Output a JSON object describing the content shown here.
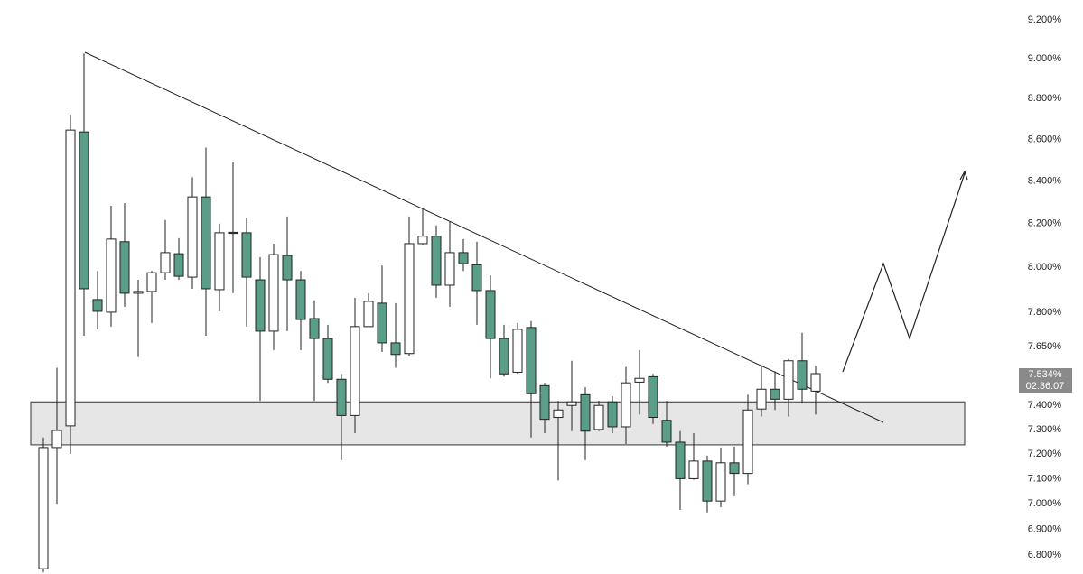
{
  "chart_data": {
    "type": "candlestick",
    "log_scale": true,
    "ylim": [
      6.728,
      9.304
    ],
    "yticks": [
      {
        "value": 6.8,
        "label": "6.800%"
      },
      {
        "value": 6.9,
        "label": "6.900%"
      },
      {
        "value": 7.0,
        "label": "7.000%"
      },
      {
        "value": 7.1,
        "label": "7.100%"
      },
      {
        "value": 7.2,
        "label": "7.200%"
      },
      {
        "value": 7.3,
        "label": "7.300%"
      },
      {
        "value": 7.4,
        "label": "7.400%"
      },
      {
        "value": 7.65,
        "label": "7.650%"
      },
      {
        "value": 7.8,
        "label": "7.800%"
      },
      {
        "value": 8.0,
        "label": "8.000%"
      },
      {
        "value": 8.2,
        "label": "8.200%"
      },
      {
        "value": 8.4,
        "label": "8.400%"
      },
      {
        "value": 8.6,
        "label": "8.600%"
      },
      {
        "value": 8.8,
        "label": "8.800%"
      },
      {
        "value": 9.0,
        "label": "9.000%"
      },
      {
        "value": 9.2,
        "label": "9.200%"
      }
    ],
    "up_color": "#ffffff",
    "down_color": "#5a9e8a",
    "open": [
      6.748,
      7.226,
      7.315,
      8.636,
      7.856,
      7.8,
      8.117,
      7.884,
      7.892,
      7.976,
      8.062,
      7.956,
      8.325,
      7.9,
      8.16,
      8.158,
      7.944,
      7.717,
      8.054,
      7.944,
      7.772,
      7.685,
      7.51,
      7.358,
      7.737,
      7.84,
      7.666,
      7.62,
      8.108,
      8.142,
      7.92,
      8.067,
      8.012,
      7.896,
      7.685,
      7.54,
      7.733,
      7.483,
      7.35,
      7.4,
      7.445,
      7.3,
      7.415,
      7.311,
      7.498,
      7.521,
      7.338,
      7.248,
      7.1,
      7.171,
      7.011,
      7.164,
      7.121,
      7.385,
      7.468,
      7.426,
      7.589,
      7.46
    ],
    "high": [
      7.267,
      7.559,
      8.72,
      9.027,
      7.984,
      8.283,
      8.296,
      7.944,
      7.984,
      8.217,
      8.133,
      8.418,
      8.56,
      8.2,
      8.489,
      8.229,
      8.046,
      8.108,
      8.233,
      7.984,
      7.852,
      7.745,
      7.533,
      7.864,
      7.884,
      8.008,
      7.84,
      8.233,
      8.267,
      8.192,
      8.208,
      8.129,
      8.117,
      7.964,
      7.745,
      7.753,
      7.761,
      7.495,
      7.419,
      7.589,
      7.476,
      7.419,
      7.438,
      7.563,
      7.635,
      7.533,
      7.419,
      7.293,
      7.285,
      7.193,
      7.226,
      7.23,
      7.445,
      7.57,
      7.544,
      7.597,
      7.71,
      7.567
    ],
    "low": [
      6.735,
      7.0,
      7.2,
      7.697,
      7.725,
      7.737,
      7.824,
      7.605,
      7.753,
      7.944,
      7.944,
      7.904,
      7.697,
      7.804,
      7.884,
      7.737,
      7.419,
      7.635,
      7.717,
      7.635,
      7.419,
      7.495,
      7.175,
      7.285,
      7.745,
      7.627,
      7.559,
      7.608,
      8.1,
      7.864,
      7.824,
      7.984,
      7.745,
      7.514,
      7.521,
      7.533,
      7.267,
      7.285,
      7.093,
      7.293,
      7.175,
      7.293,
      7.285,
      7.241,
      7.362,
      7.323,
      7.23,
      6.976,
      7.096,
      6.966,
      6.986,
      7.03,
      7.078,
      7.354,
      7.381,
      7.354,
      7.408,
      7.362
    ],
    "close": [
      7.226,
      7.296,
      8.645,
      7.904,
      7.804,
      8.129,
      7.884,
      7.892,
      7.976,
      8.067,
      7.96,
      8.325,
      7.904,
      8.158,
      8.155,
      7.956,
      7.717,
      8.058,
      7.944,
      7.768,
      7.685,
      7.51,
      7.358,
      7.737,
      7.848,
      7.666,
      7.616,
      8.108,
      8.142,
      7.92,
      8.067,
      8.017,
      7.896,
      7.685,
      7.533,
      7.725,
      7.449,
      7.342,
      7.381,
      7.415,
      7.293,
      7.4,
      7.311,
      7.495,
      7.514,
      7.35,
      7.248,
      7.1,
      7.171,
      7.011,
      7.164,
      7.121,
      7.381,
      7.468,
      7.426,
      7.589,
      7.468,
      7.534
    ],
    "zone": {
      "low": 7.237,
      "high": 7.415
    },
    "last_price": {
      "value": 7.534,
      "label": "7.534%"
    },
    "countdown": "02:36:07"
  }
}
